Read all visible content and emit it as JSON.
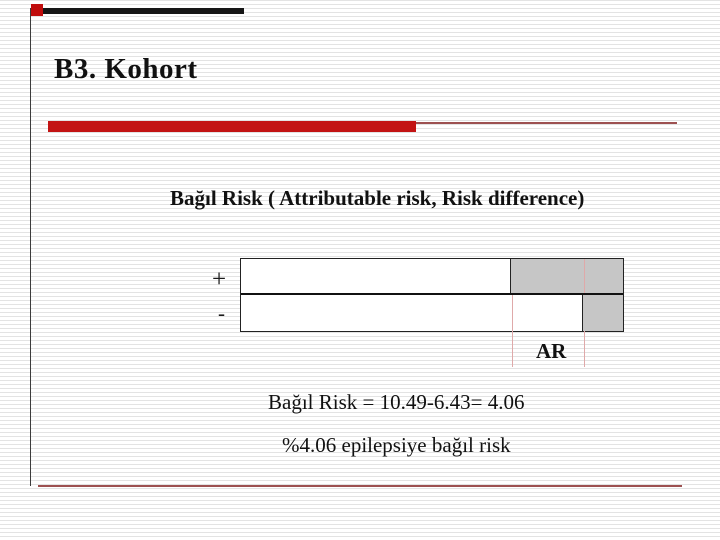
{
  "slide": {
    "title": "B3. Kohort",
    "heading": "Bağıl Risk ( Attributable risk, Risk difference)",
    "diagram": {
      "plus_label": "+",
      "minus_label": "-",
      "ar_label": "AR",
      "exposed_risk": "10.49",
      "unexposed_risk": "6.43",
      "attributable_risk": "4.06"
    },
    "formula": "Bağıl Risk = 10.49-6.43= 4.06",
    "note": "%4.06 epilepsiye bağıl risk",
    "colors": {
      "accent_red": "#c31414",
      "maroon_line": "#9d5151",
      "gray_fill": "#c6c6c6",
      "pink_guide": "#dfa9a9",
      "black_bar": "#161616"
    }
  }
}
